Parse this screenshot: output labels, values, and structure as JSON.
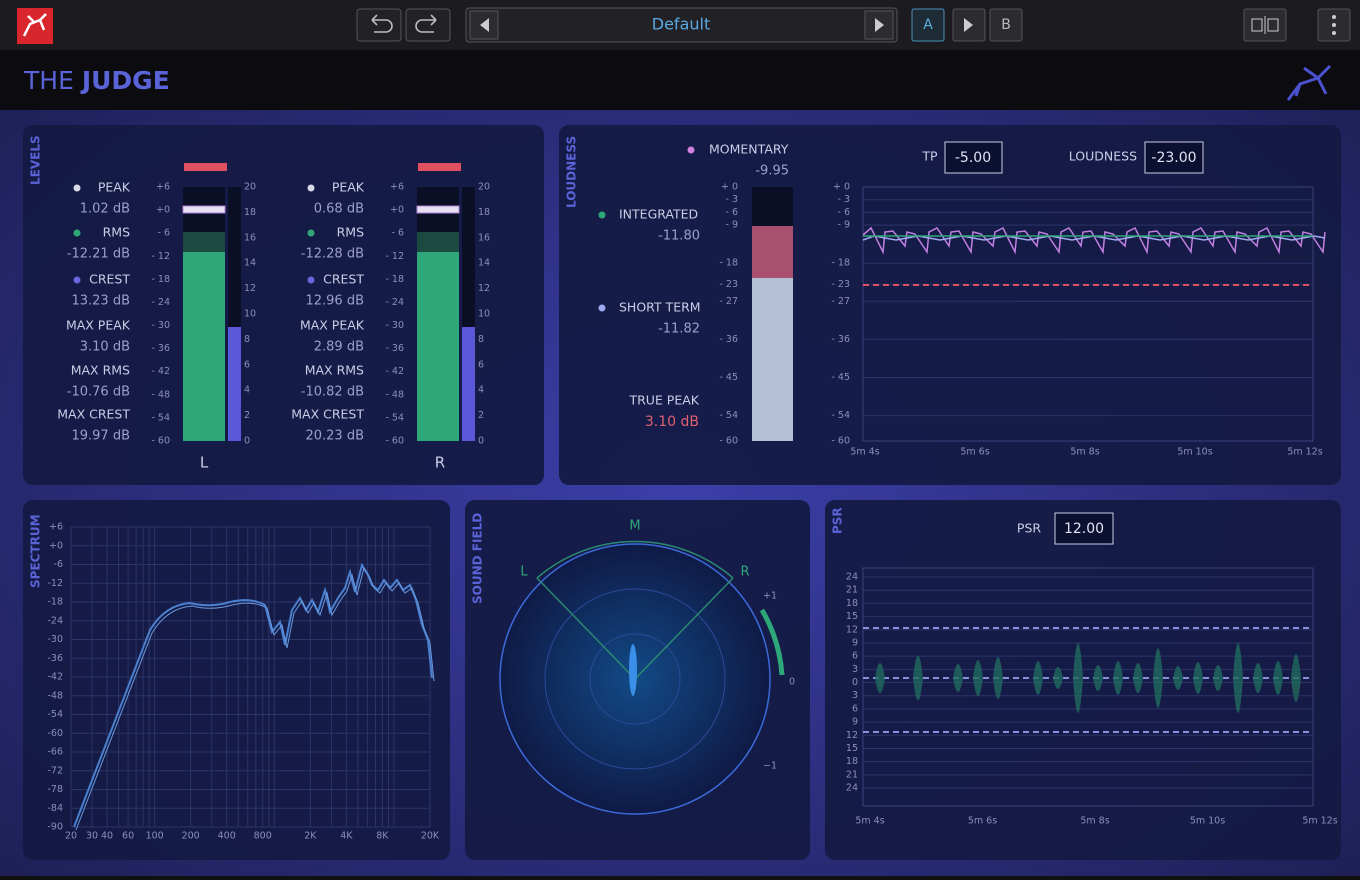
{
  "toolbar": {
    "preset": "Default",
    "slot_a": "A",
    "slot_b": "B"
  },
  "header": {
    "title_light": "THE",
    "title_bold": "JUDGE"
  },
  "levels": {
    "label": "LEVELS",
    "channels": [
      {
        "name": "L",
        "stats": [
          {
            "label": "PEAK",
            "value": "1.02 dB"
          },
          {
            "label": "RMS",
            "value": "-12.21 dB"
          },
          {
            "label": "CREST",
            "value": "13.23 dB"
          },
          {
            "label": "MAX PEAK",
            "value": "3.10 dB"
          },
          {
            "label": "MAX RMS",
            "value": "-10.76 dB"
          },
          {
            "label": "MAX CREST",
            "value": "19.97 dB"
          }
        ]
      },
      {
        "name": "R",
        "stats": [
          {
            "label": "PEAK",
            "value": "0.68 dB"
          },
          {
            "label": "RMS",
            "value": "-12.28 dB"
          },
          {
            "label": "CREST",
            "value": "12.96 dB"
          },
          {
            "label": "MAX PEAK",
            "value": "2.89 dB"
          },
          {
            "label": "MAX RMS",
            "value": "-10.82 dB"
          },
          {
            "label": "MAX CREST",
            "value": "20.23 dB"
          }
        ]
      }
    ],
    "db_scale": [
      "+6",
      "+0",
      "- 6",
      "- 12",
      "- 18",
      "- 24",
      "- 30",
      "- 36",
      "- 42",
      "- 48",
      "- 54",
      "- 60"
    ],
    "crest_scale": [
      "20",
      "18",
      "16",
      "14",
      "12",
      "10",
      "8",
      "6",
      "4",
      "2",
      "0"
    ]
  },
  "loudness": {
    "label": "LOUDNESS",
    "momentary": {
      "label": "MOMENTARY",
      "value": "-9.95"
    },
    "integrated": {
      "label": "INTEGRATED",
      "value": "-11.80"
    },
    "short_term": {
      "label": "SHORT TERM",
      "value": "-11.82"
    },
    "true_peak": {
      "label": "TRUE PEAK",
      "value": "3.10 dB"
    },
    "scale": [
      "+ 0",
      "- 3",
      "- 6",
      "- 9",
      "- 18",
      "- 23",
      "- 27",
      "- 36",
      "- 45",
      "- 54",
      "- 60"
    ],
    "tp": {
      "label": "TP",
      "value": "-5.00"
    },
    "target": {
      "label": "LOUDNESS",
      "value": "-23.00"
    },
    "time_labels": [
      "5m 4s",
      "5m 6s",
      "5m 8s",
      "5m 10s",
      "5m 12s"
    ]
  },
  "spectrum": {
    "label": "SPECTRUM",
    "yticks": [
      "+6",
      "+0",
      "-6",
      "-12",
      "-18",
      "-24",
      "-30",
      "-36",
      "-42",
      "-48",
      "-54",
      "-60",
      "-66",
      "-72",
      "-78",
      "-84",
      "-90"
    ],
    "xticks": [
      "20",
      "30",
      "40",
      "60",
      "100",
      "200",
      "400",
      "800",
      "2K",
      "4K",
      "8K",
      "20K"
    ]
  },
  "sound_field": {
    "label": "SOUND FIELD",
    "left": "L",
    "mid": "M",
    "right": "R",
    "scale_top": "+1",
    "scale_mid": "0",
    "scale_bottom": "−1"
  },
  "psr": {
    "label": "PSR",
    "value": "12.00",
    "yticks": [
      "24",
      "21",
      "18",
      "15",
      "12",
      "9",
      "6",
      "3",
      "0",
      "3",
      "6",
      "9",
      "12",
      "15",
      "18",
      "21",
      "24"
    ],
    "time_labels": [
      "5m 4s",
      "5m 6s",
      "5m 8s",
      "5m 10s",
      "5m 12s"
    ]
  }
}
